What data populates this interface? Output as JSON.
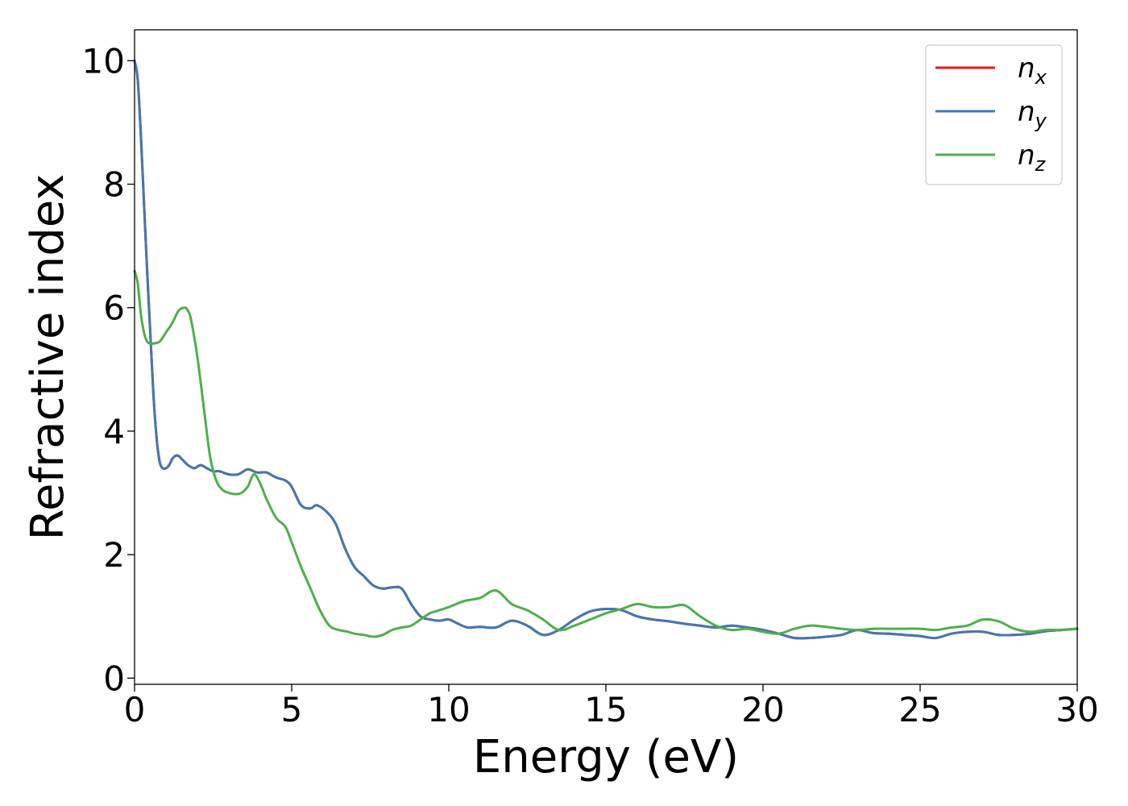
{
  "chart_data": {
    "type": "line",
    "xlabel": "Energy (eV)",
    "ylabel": "Refractive index",
    "xlim": [
      0,
      30
    ],
    "ylim": [
      -0.1,
      10.5
    ],
    "xticks": [
      0,
      5,
      10,
      15,
      20,
      25,
      30
    ],
    "yticks": [
      0,
      2,
      4,
      6,
      8,
      10
    ],
    "grid": false,
    "legend_position": "top-right",
    "series": [
      {
        "name": "n_x",
        "label_base": "n",
        "label_sub": "x",
        "color": "#e41a1c",
        "x": [
          0,
          0.1,
          0.2,
          0.3,
          0.4,
          0.5,
          0.6,
          0.7,
          0.8,
          0.9,
          1.0,
          1.1,
          1.2,
          1.3,
          1.4,
          1.5,
          1.7,
          1.9,
          2.1,
          2.3,
          2.5,
          2.7,
          3.0,
          3.3,
          3.6,
          3.9,
          4.2,
          4.5,
          4.8,
          5.0,
          5.3,
          5.6,
          5.8,
          6.1,
          6.4,
          6.7,
          7.0,
          7.3,
          7.6,
          7.9,
          8.2,
          8.5,
          8.8,
          9.1,
          9.4,
          9.7,
          10.0,
          10.3,
          10.6,
          11.0,
          11.5,
          12.0,
          12.5,
          13.0,
          13.5,
          14.0,
          14.5,
          15.0,
          15.5,
          16.0,
          16.5,
          17.0,
          17.5,
          18.0,
          18.5,
          19.0,
          19.5,
          20.0,
          20.5,
          21.0,
          21.5,
          22.0,
          22.5,
          23.0,
          23.5,
          24.0,
          24.5,
          25.0,
          25.5,
          26.0,
          26.5,
          27.0,
          27.5,
          28.0,
          28.5,
          29.0,
          29.5,
          30.0
        ],
        "y": [
          10.0,
          9.7,
          8.8,
          7.7,
          6.6,
          5.6,
          4.6,
          3.9,
          3.5,
          3.4,
          3.4,
          3.45,
          3.55,
          3.6,
          3.6,
          3.55,
          3.45,
          3.4,
          3.45,
          3.4,
          3.35,
          3.35,
          3.3,
          3.3,
          3.38,
          3.33,
          3.33,
          3.25,
          3.2,
          3.1,
          2.8,
          2.75,
          2.8,
          2.7,
          2.5,
          2.1,
          1.8,
          1.65,
          1.5,
          1.45,
          1.47,
          1.45,
          1.2,
          1.0,
          0.95,
          0.93,
          0.95,
          0.88,
          0.82,
          0.83,
          0.82,
          0.93,
          0.85,
          0.7,
          0.78,
          0.95,
          1.08,
          1.12,
          1.1,
          1.0,
          0.95,
          0.92,
          0.88,
          0.85,
          0.82,
          0.85,
          0.82,
          0.78,
          0.72,
          0.65,
          0.65,
          0.67,
          0.7,
          0.78,
          0.73,
          0.72,
          0.7,
          0.68,
          0.65,
          0.72,
          0.75,
          0.75,
          0.7,
          0.7,
          0.72,
          0.76,
          0.78,
          0.8
        ]
      },
      {
        "name": "n_y",
        "label_base": "n",
        "label_sub": "y",
        "color": "#4378b0",
        "x": [
          0,
          0.1,
          0.2,
          0.3,
          0.4,
          0.5,
          0.6,
          0.7,
          0.8,
          0.9,
          1.0,
          1.1,
          1.2,
          1.3,
          1.4,
          1.5,
          1.7,
          1.9,
          2.1,
          2.3,
          2.5,
          2.7,
          3.0,
          3.3,
          3.6,
          3.9,
          4.2,
          4.5,
          4.8,
          5.0,
          5.3,
          5.6,
          5.8,
          6.1,
          6.4,
          6.7,
          7.0,
          7.3,
          7.6,
          7.9,
          8.2,
          8.5,
          8.8,
          9.1,
          9.4,
          9.7,
          10.0,
          10.3,
          10.6,
          11.0,
          11.5,
          12.0,
          12.5,
          13.0,
          13.5,
          14.0,
          14.5,
          15.0,
          15.5,
          16.0,
          16.5,
          17.0,
          17.5,
          18.0,
          18.5,
          19.0,
          19.5,
          20.0,
          20.5,
          21.0,
          21.5,
          22.0,
          22.5,
          23.0,
          23.5,
          24.0,
          24.5,
          25.0,
          25.5,
          26.0,
          26.5,
          27.0,
          27.5,
          28.0,
          28.5,
          29.0,
          29.5,
          30.0
        ],
        "y": [
          10.0,
          9.7,
          8.8,
          7.7,
          6.6,
          5.6,
          4.6,
          3.9,
          3.5,
          3.4,
          3.4,
          3.45,
          3.55,
          3.6,
          3.6,
          3.55,
          3.45,
          3.4,
          3.45,
          3.4,
          3.35,
          3.35,
          3.3,
          3.3,
          3.38,
          3.33,
          3.33,
          3.25,
          3.2,
          3.1,
          2.8,
          2.75,
          2.8,
          2.7,
          2.5,
          2.1,
          1.8,
          1.65,
          1.5,
          1.45,
          1.47,
          1.45,
          1.2,
          1.0,
          0.95,
          0.93,
          0.95,
          0.88,
          0.82,
          0.83,
          0.82,
          0.93,
          0.85,
          0.7,
          0.78,
          0.95,
          1.08,
          1.12,
          1.1,
          1.0,
          0.95,
          0.92,
          0.88,
          0.85,
          0.82,
          0.85,
          0.82,
          0.78,
          0.72,
          0.65,
          0.65,
          0.67,
          0.7,
          0.78,
          0.73,
          0.72,
          0.7,
          0.68,
          0.65,
          0.72,
          0.75,
          0.75,
          0.7,
          0.7,
          0.72,
          0.76,
          0.78,
          0.8
        ]
      },
      {
        "name": "n_z",
        "label_base": "n",
        "label_sub": "z",
        "color": "#4daf4a",
        "x": [
          0,
          0.1,
          0.2,
          0.3,
          0.4,
          0.5,
          0.6,
          0.8,
          1.0,
          1.2,
          1.4,
          1.6,
          1.7,
          1.8,
          2.0,
          2.2,
          2.4,
          2.6,
          2.8,
          3.0,
          3.2,
          3.4,
          3.6,
          3.8,
          4.0,
          4.2,
          4.5,
          4.8,
          5.0,
          5.3,
          5.6,
          5.9,
          6.2,
          6.5,
          6.8,
          7.0,
          7.3,
          7.6,
          7.9,
          8.2,
          8.5,
          8.8,
          9.1,
          9.4,
          9.7,
          10.0,
          10.5,
          11.0,
          11.5,
          12.0,
          12.5,
          13.0,
          13.5,
          14.0,
          14.5,
          15.0,
          15.5,
          16.0,
          16.5,
          17.0,
          17.5,
          18.0,
          18.5,
          19.0,
          19.5,
          20.0,
          20.5,
          21.0,
          21.5,
          22.0,
          22.5,
          23.0,
          23.5,
          24.0,
          24.5,
          25.0,
          25.5,
          26.0,
          26.5,
          27.0,
          27.5,
          28.0,
          28.5,
          29.0,
          29.5,
          30.0
        ],
        "y": [
          6.6,
          6.4,
          5.9,
          5.6,
          5.45,
          5.42,
          5.42,
          5.45,
          5.6,
          5.75,
          5.95,
          6.0,
          5.95,
          5.8,
          5.2,
          4.4,
          3.6,
          3.2,
          3.05,
          3.0,
          2.98,
          3.0,
          3.1,
          3.3,
          3.15,
          2.9,
          2.6,
          2.45,
          2.2,
          1.8,
          1.45,
          1.1,
          0.85,
          0.78,
          0.75,
          0.72,
          0.7,
          0.67,
          0.7,
          0.78,
          0.82,
          0.85,
          0.95,
          1.05,
          1.1,
          1.15,
          1.25,
          1.3,
          1.42,
          1.2,
          1.1,
          0.95,
          0.78,
          0.85,
          0.95,
          1.05,
          1.12,
          1.2,
          1.15,
          1.15,
          1.18,
          1.0,
          0.85,
          0.78,
          0.8,
          0.75,
          0.72,
          0.8,
          0.85,
          0.83,
          0.8,
          0.78,
          0.8,
          0.8,
          0.8,
          0.8,
          0.78,
          0.82,
          0.85,
          0.95,
          0.92,
          0.8,
          0.75,
          0.78,
          0.78,
          0.8
        ]
      }
    ]
  }
}
